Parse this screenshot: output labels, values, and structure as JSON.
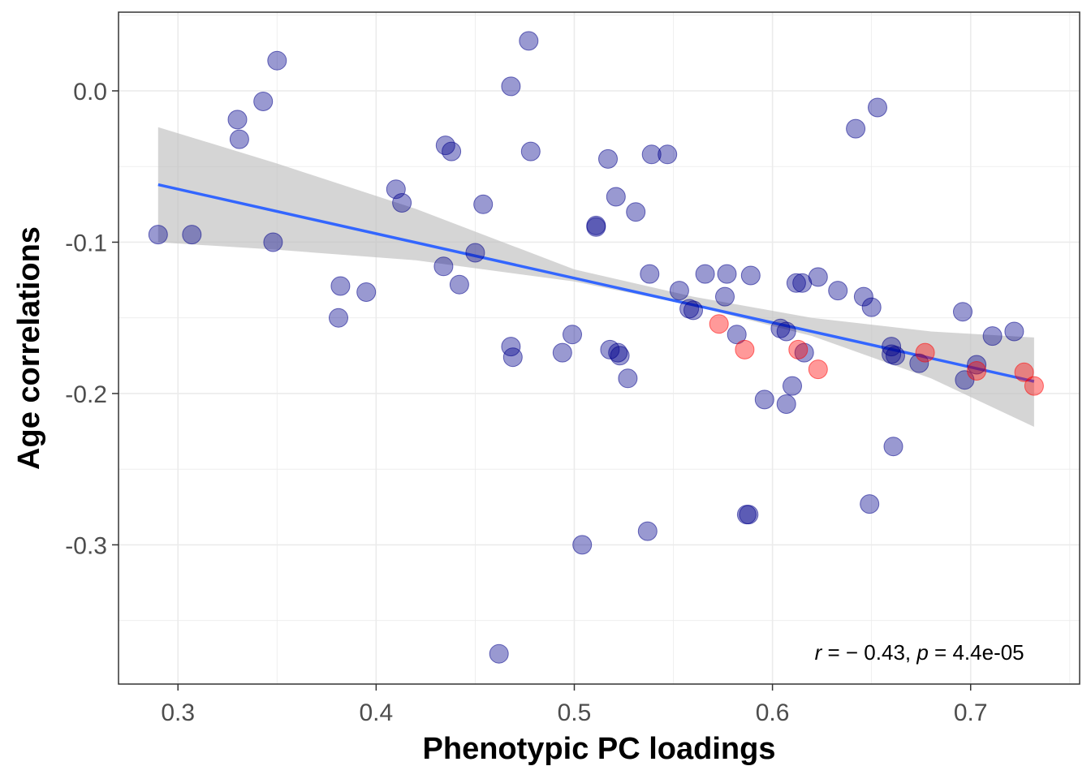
{
  "chart_data": {
    "type": "scatter",
    "xlabel": "Phenotypic PC loadings",
    "ylabel": "Age correlations",
    "xlim": [
      0.27,
      0.755
    ],
    "ylim": [
      -0.392,
      0.052
    ],
    "x_ticks": [
      0.3,
      0.4,
      0.5,
      0.6,
      0.7
    ],
    "x_tick_labels": [
      "0.3",
      "0.4",
      "0.5",
      "0.6",
      "0.7"
    ],
    "y_ticks": [
      0.0,
      -0.1,
      -0.2,
      -0.3
    ],
    "y_tick_labels": [
      "0.0",
      "-0.1",
      "-0.2",
      "-0.3"
    ],
    "grid": true,
    "colors": {
      "blue_points": "#00008B",
      "red_points": "#FF0000",
      "fit_line": "#3366FF",
      "ribbon": "#BEBEBE",
      "grid": "#EBEBEB",
      "panel_border": "#333333"
    },
    "series": [
      {
        "color": "#00008B",
        "x": [
          0.29,
          0.307,
          0.33,
          0.331,
          0.343,
          0.348,
          0.35,
          0.381,
          0.382,
          0.395,
          0.41,
          0.413,
          0.434,
          0.435,
          0.438,
          0.442,
          0.45,
          0.454,
          0.462,
          0.468,
          0.468,
          0.469,
          0.477,
          0.478,
          0.494,
          0.499,
          0.504,
          0.511,
          0.511,
          0.517,
          0.518,
          0.521,
          0.522,
          0.523,
          0.527,
          0.531,
          0.537,
          0.538,
          0.539,
          0.547,
          0.553,
          0.558,
          0.56,
          0.566,
          0.576,
          0.577,
          0.582,
          0.587,
          0.588,
          0.589,
          0.596,
          0.604,
          0.607,
          0.607,
          0.61,
          0.612,
          0.615,
          0.616,
          0.623,
          0.633,
          0.642,
          0.646,
          0.649,
          0.65,
          0.653,
          0.66,
          0.66,
          0.662,
          0.661,
          0.674,
          0.696,
          0.697,
          0.703,
          0.711,
          0.722
        ],
        "y": [
          -0.095,
          -0.095,
          -0.019,
          -0.032,
          -0.007,
          -0.1,
          0.02,
          -0.15,
          -0.129,
          -0.133,
          -0.065,
          -0.074,
          -0.116,
          -0.036,
          -0.04,
          -0.128,
          -0.107,
          -0.075,
          -0.372,
          0.003,
          -0.169,
          -0.176,
          0.033,
          -0.04,
          -0.173,
          -0.161,
          -0.3,
          -0.089,
          -0.09,
          -0.045,
          -0.171,
          -0.07,
          -0.173,
          -0.175,
          -0.19,
          -0.08,
          -0.291,
          -0.121,
          -0.042,
          -0.042,
          -0.132,
          -0.144,
          -0.145,
          -0.121,
          -0.136,
          -0.121,
          -0.161,
          -0.28,
          -0.28,
          -0.122,
          -0.204,
          -0.157,
          -0.159,
          -0.207,
          -0.195,
          -0.127,
          -0.127,
          -0.173,
          -0.123,
          -0.132,
          -0.025,
          -0.136,
          -0.273,
          -0.143,
          -0.011,
          -0.169,
          -0.174,
          -0.175,
          -0.235,
          -0.18,
          -0.146,
          -0.191,
          -0.181,
          -0.162,
          -0.159
        ]
      },
      {
        "color": "#FF0000",
        "x": [
          0.573,
          0.586,
          0.613,
          0.623,
          0.677,
          0.703,
          0.727,
          0.732
        ],
        "y": [
          -0.154,
          -0.171,
          -0.171,
          -0.184,
          -0.173,
          -0.185,
          -0.186,
          -0.195
        ]
      }
    ],
    "fit_line": {
      "x": [
        0.29,
        0.732
      ],
      "y": [
        -0.062,
        -0.192
      ]
    },
    "confidence_band": {
      "x": [
        0.29,
        0.35,
        0.42,
        0.5,
        0.56,
        0.62,
        0.68,
        0.732
      ],
      "lower": [
        -0.1,
        -0.105,
        -0.112,
        -0.126,
        -0.142,
        -0.162,
        -0.19,
        -0.222
      ],
      "upper": [
        -0.024,
        -0.048,
        -0.078,
        -0.118,
        -0.136,
        -0.15,
        -0.159,
        -0.163
      ]
    },
    "annotation": {
      "r_symbol": "r",
      "r_text": " = − 0.43, ",
      "p_symbol": "p",
      "p_text": " = 4.4e-05",
      "x": 0.727,
      "y": -0.376
    }
  }
}
